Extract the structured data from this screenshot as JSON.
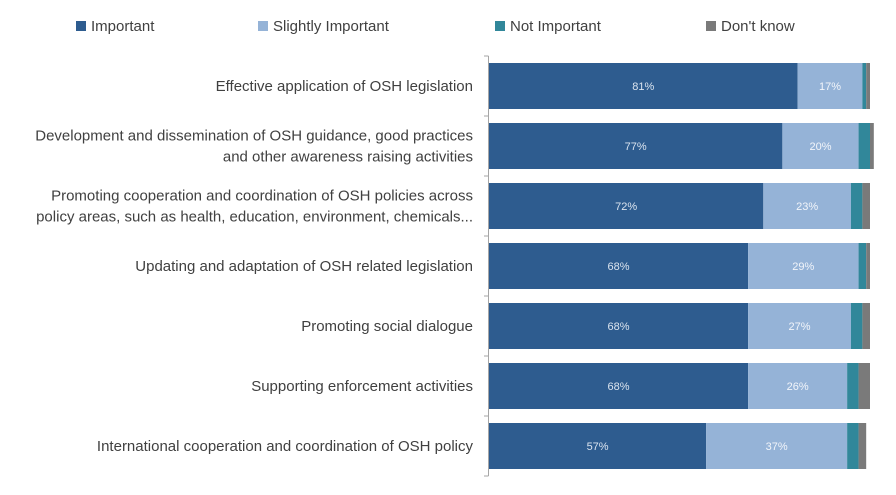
{
  "chart_data": {
    "type": "bar",
    "orientation": "horizontal",
    "stacked": true,
    "xlim": [
      0,
      100
    ],
    "grid": false,
    "legend_position": "top",
    "categories": [
      [
        "Effective application of OSH legislation"
      ],
      [
        "Development and dissemination of OSH guidance, good practices",
        "and other awareness raising activities"
      ],
      [
        "Promoting cooperation and coordination of OSH policies across",
        "policy areas, such as health, education, environment, chemicals..."
      ],
      [
        "Updating and adaptation of OSH related legislation"
      ],
      [
        "Promoting social dialogue"
      ],
      [
        "Supporting enforcement activities"
      ],
      [
        "International cooperation and coordination of OSH policy"
      ]
    ],
    "series": [
      {
        "name": "Important",
        "color": "#2e5c8f",
        "label_color": "#dbe4ef",
        "values": [
          81,
          77,
          72,
          68,
          68,
          68,
          57
        ],
        "labels": [
          "81%",
          "77%",
          "72%",
          "68%",
          "68%",
          "68%",
          "57%"
        ]
      },
      {
        "name": "Slightly Important",
        "color": "#95b3d7",
        "label_color": "#f2f5fa",
        "values": [
          17,
          20,
          23,
          29,
          27,
          26,
          37
        ],
        "labels": [
          "17%",
          "20%",
          "23%",
          "29%",
          "27%",
          "26%",
          "37%"
        ]
      },
      {
        "name": "Not Important",
        "color": "#31879a",
        "values": [
          1,
          3,
          3,
          2,
          3,
          3,
          3
        ]
      },
      {
        "name": "Don't know",
        "color": "#7a7a7a",
        "values": [
          1,
          1,
          2,
          1,
          2,
          3,
          2
        ]
      }
    ]
  }
}
